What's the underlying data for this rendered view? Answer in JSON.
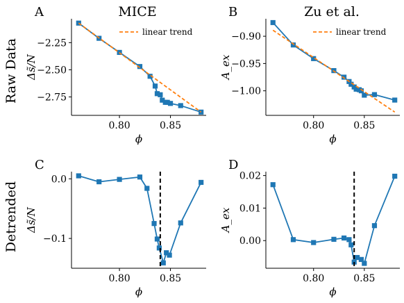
{
  "figure": {
    "column_titles": [
      "MICE",
      "Zu et al."
    ],
    "row_labels": [
      "Raw Data",
      "Detrended"
    ],
    "colors": {
      "data": "#1f77b4",
      "trend": "#ff7f0e",
      "vline": "#000000"
    }
  },
  "chart_data": [
    {
      "panel": "A",
      "type": "line",
      "xlabel": "ϕ",
      "ylabel": "Δs̃/N",
      "xlim": [
        0.753,
        0.885
      ],
      "ylim": [
        -2.92,
        -2.03
      ],
      "xticks": [
        0.8,
        0.85
      ],
      "xtick_labels": [
        "0.80",
        "0.85"
      ],
      "yticks": [
        -2.25,
        -2.5,
        -2.75
      ],
      "ytick_labels": [
        "−2.25",
        "−2.50",
        "−2.75"
      ],
      "series": [
        {
          "kind": "data",
          "x": [
            0.76,
            0.78,
            0.8,
            0.82,
            0.83,
            0.835,
            0.837,
            0.84,
            0.842,
            0.845,
            0.847,
            0.85,
            0.86,
            0.88
          ],
          "y": [
            -2.07,
            -2.21,
            -2.34,
            -2.47,
            -2.56,
            -2.65,
            -2.72,
            -2.73,
            -2.78,
            -2.8,
            -2.8,
            -2.81,
            -2.83,
            -2.89
          ]
        },
        {
          "kind": "trend",
          "name": "linear trend",
          "x": [
            0.76,
            0.88
          ],
          "y": [
            -2.07,
            -2.89
          ]
        }
      ],
      "legend": "top-right",
      "vline": null
    },
    {
      "panel": "B",
      "type": "line",
      "xlabel": "ϕ",
      "ylabel": "A_ex",
      "xlim": [
        0.753,
        0.885
      ],
      "ylim": [
        -1.045,
        -0.868
      ],
      "xticks": [
        0.8,
        0.85
      ],
      "xtick_labels": [
        "0.80",
        "0.85"
      ],
      "yticks": [
        -0.9,
        -0.95,
        -1.0
      ],
      "ytick_labels": [
        "−0.90",
        "−0.95",
        "−1.00"
      ],
      "series": [
        {
          "kind": "data",
          "x": [
            0.76,
            0.78,
            0.8,
            0.82,
            0.83,
            0.835,
            0.837,
            0.84,
            0.842,
            0.845,
            0.847,
            0.85,
            0.86,
            0.88
          ],
          "y": [
            -0.875,
            -0.916,
            -0.941,
            -0.963,
            -0.975,
            -0.983,
            -0.988,
            -0.993,
            -0.997,
            -0.998,
            -1.0,
            -1.008,
            -1.007,
            -1.017
          ]
        },
        {
          "kind": "trend",
          "name": "linear trend",
          "x": [
            0.76,
            0.88
          ],
          "y": [
            -0.889,
            -1.039
          ]
        }
      ],
      "legend": "top-right",
      "vline": null
    },
    {
      "panel": "C",
      "type": "line",
      "xlabel": "ϕ",
      "ylabel": "Δs̃/N",
      "xlim": [
        0.753,
        0.885
      ],
      "ylim": [
        -0.15,
        0.012
      ],
      "xticks": [
        0.8,
        0.85
      ],
      "xtick_labels": [
        "0.80",
        "0.85"
      ],
      "yticks": [
        0.0,
        -0.1
      ],
      "ytick_labels": [
        "0.0",
        "−0.1"
      ],
      "series": [
        {
          "kind": "data",
          "x": [
            0.76,
            0.78,
            0.8,
            0.82,
            0.827,
            0.834,
            0.837,
            0.839,
            0.843,
            0.846,
            0.849,
            0.86,
            0.88
          ],
          "y": [
            0.005,
            -0.005,
            -0.001,
            0.003,
            -0.016,
            -0.075,
            -0.101,
            -0.116,
            -0.141,
            -0.124,
            -0.128,
            -0.074,
            -0.006
          ]
        }
      ],
      "legend": null,
      "vline": 0.84
    },
    {
      "panel": "D",
      "type": "line",
      "xlabel": "ϕ",
      "ylabel": "A_ex",
      "xlim": [
        0.753,
        0.885
      ],
      "ylim": [
        -0.0085,
        0.0212
      ],
      "xticks": [
        0.8,
        0.85
      ],
      "xtick_labels": [
        "0.80",
        "0.85"
      ],
      "yticks": [
        0.02,
        0.01,
        0.0
      ],
      "ytick_labels": [
        "0.02",
        "0.01",
        "0.00"
      ],
      "series": [
        {
          "kind": "data",
          "x": [
            0.76,
            0.78,
            0.8,
            0.82,
            0.83,
            0.835,
            0.837,
            0.84,
            0.843,
            0.847,
            0.85,
            0.86,
            0.88
          ],
          "y": [
            0.0172,
            0.0003,
            -0.0006,
            0.0004,
            0.0008,
            0.0003,
            -0.0013,
            -0.0066,
            -0.0052,
            -0.0058,
            -0.007,
            0.0046,
            0.0198
          ]
        }
      ],
      "legend": null,
      "vline": 0.84
    }
  ]
}
